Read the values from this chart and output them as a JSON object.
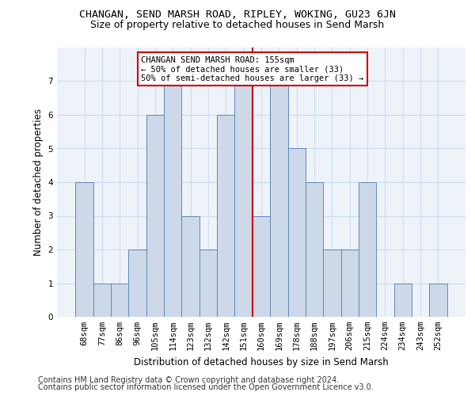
{
  "title": "CHANGAN, SEND MARSH ROAD, RIPLEY, WOKING, GU23 6JN",
  "subtitle": "Size of property relative to detached houses in Send Marsh",
  "xlabel": "Distribution of detached houses by size in Send Marsh",
  "ylabel": "Number of detached properties",
  "footer_line1": "Contains HM Land Registry data © Crown copyright and database right 2024.",
  "footer_line2": "Contains public sector information licensed under the Open Government Licence v3.0.",
  "categories": [
    "68sqm",
    "77sqm",
    "86sqm",
    "96sqm",
    "105sqm",
    "114sqm",
    "123sqm",
    "132sqm",
    "142sqm",
    "151sqm",
    "160sqm",
    "169sqm",
    "178sqm",
    "188sqm",
    "197sqm",
    "206sqm",
    "215sqm",
    "224sqm",
    "234sqm",
    "243sqm",
    "252sqm"
  ],
  "values": [
    4,
    1,
    1,
    2,
    6,
    7,
    3,
    2,
    6,
    7,
    3,
    7,
    5,
    4,
    2,
    2,
    4,
    0,
    1,
    0,
    1
  ],
  "bar_color": "#cdd8e8",
  "bar_edge_color": "#6088bb",
  "vline_x": 9.5,
  "vline_color": "#cc0000",
  "annotation_text": "CHANGAN SEND MARSH ROAD: 155sqm\n← 50% of detached houses are smaller (33)\n50% of semi-detached houses are larger (33) →",
  "annotation_box_color": "#ffffff",
  "annotation_box_edge": "#cc0000",
  "ylim": [
    0,
    8
  ],
  "yticks": [
    0,
    1,
    2,
    3,
    4,
    5,
    6,
    7,
    8
  ],
  "grid_color": "#ccddee",
  "background_color": "#eef3fa",
  "title_fontsize": 9.5,
  "subtitle_fontsize": 9,
  "ylabel_fontsize": 8.5,
  "xlabel_fontsize": 8.5,
  "tick_fontsize": 7.5,
  "annotation_fontsize": 7.5,
  "footer_fontsize": 7
}
